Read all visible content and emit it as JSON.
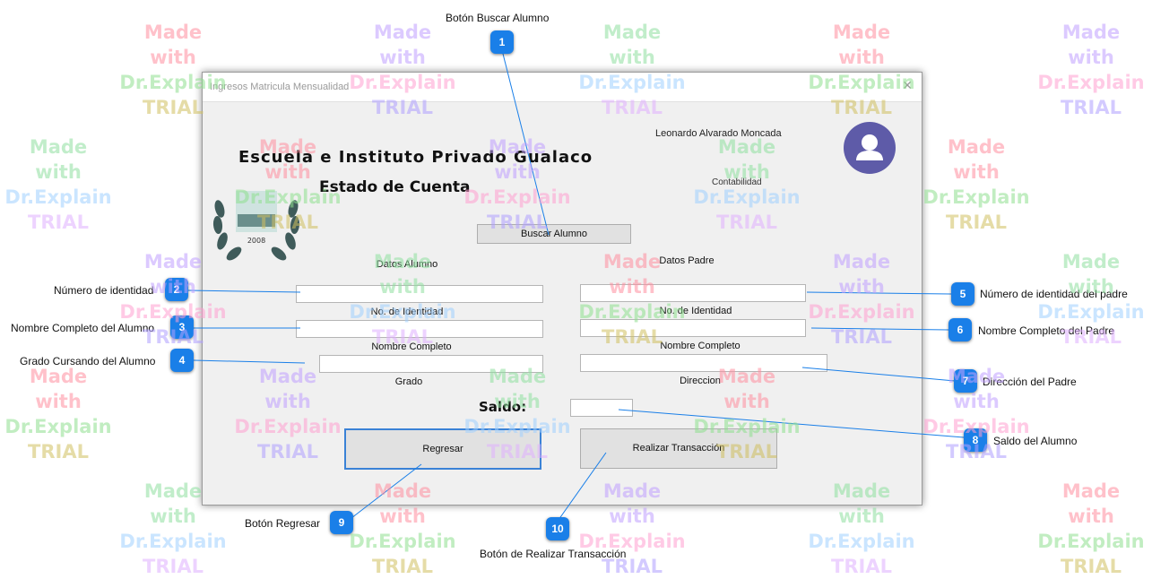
{
  "window": {
    "title": "Ingresos Matricula Mensualidad",
    "close_glyph": "✕",
    "school_name": "Escuela e Instituto Privado Gualaco",
    "subtitle": "Estado de Cuenta",
    "user_name": "Leonardo Alvarado Moncada",
    "user_role": "Contabilidad",
    "logo_year": "2008",
    "search_button": "Buscar Alumno",
    "student_section": "Datos Alumno",
    "student_id_label": "No. de Identidad",
    "student_name_label": "Nombre Completo",
    "student_grade_label": "Grado",
    "father_section": "Datos Padre",
    "father_id_label": "No. de Identidad",
    "father_name_label": "Nombre Completo",
    "father_address_label": "Direccion",
    "balance_label": "Saldo:",
    "back_button": "Regresar",
    "transaction_button": "Realizar Transacción",
    "avatar_icon": "user-avatar-icon"
  },
  "callouts": [
    {
      "num": "1",
      "text": "Botón Buscar Alumno"
    },
    {
      "num": "2",
      "text": "Número de identidad"
    },
    {
      "num": "3",
      "text": "Nombre Completo del Alumno"
    },
    {
      "num": "4",
      "text": "Grado Cursando del Alumno"
    },
    {
      "num": "5",
      "text": "Número de identidad del padre"
    },
    {
      "num": "6",
      "text": "Nombre Completo del Padre"
    },
    {
      "num": "7",
      "text": "Dirección del Padre"
    },
    {
      "num": "8",
      "text": "Saldo del Alumno"
    },
    {
      "num": "9",
      "text": "Botón Regresar"
    },
    {
      "num": "10",
      "text": "Botón de Realizar Transacción"
    }
  ],
  "watermark": {
    "line1": "Made with",
    "line2": "Dr.Explain",
    "line3": "TRIAL"
  },
  "colors": {
    "badge": "#1a7fe8",
    "avatar": "#5e5ba8",
    "focus_border": "#3a82d6"
  }
}
